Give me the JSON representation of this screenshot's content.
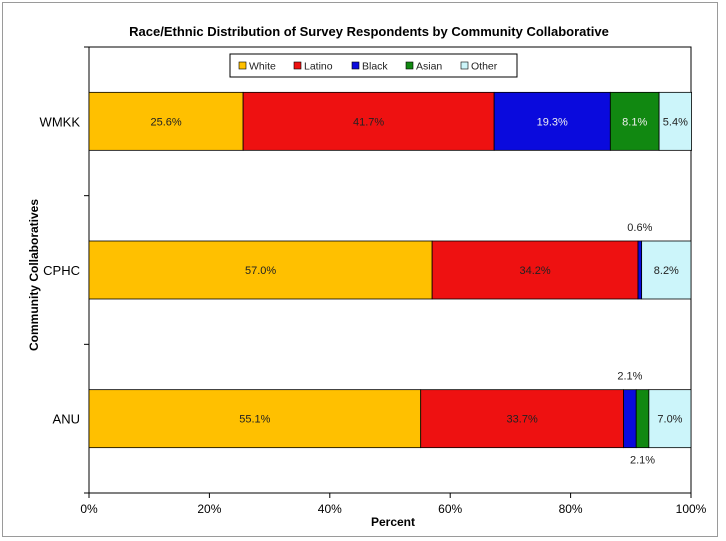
{
  "chart_data": {
    "type": "bar",
    "orientation": "horizontal",
    "stacked": true,
    "title": "Race/Ethnic Distribution of Survey Respondents by Community Collaborative",
    "xlabel": "Percent",
    "ylabel": "Community Collaboratives",
    "xlim": [
      0,
      100
    ],
    "xticks": [
      "0%",
      "20%",
      "40%",
      "60%",
      "80%",
      "100%"
    ],
    "categories": [
      "WMKK",
      "CPHC",
      "ANU"
    ],
    "series": [
      {
        "name": "White",
        "color": "#FFC000",
        "values": [
          25.6,
          57.0,
          55.1
        ],
        "labels": [
          "25.6%",
          "57.0%",
          "55.1%"
        ]
      },
      {
        "name": "Latino",
        "color": "#EE1111",
        "values": [
          41.7,
          34.2,
          33.7
        ],
        "labels": [
          "41.7%",
          "34.2%",
          "33.7%"
        ]
      },
      {
        "name": "Black",
        "color": "#0A0ADD",
        "values": [
          19.3,
          0.6,
          2.1
        ],
        "labels": [
          "19.3%",
          "0.6%",
          "2.1%"
        ]
      },
      {
        "name": "Asian",
        "color": "#118811",
        "values": [
          8.1,
          0.0,
          2.1
        ],
        "labels": [
          "8.1%",
          "",
          "2.1%"
        ]
      },
      {
        "name": "Other",
        "color": "#CCF5FA",
        "values": [
          5.4,
          8.2,
          7.0
        ],
        "labels": [
          "5.4%",
          "8.2%",
          "7.0%"
        ]
      }
    ],
    "legend": "top-center",
    "grid": false
  }
}
